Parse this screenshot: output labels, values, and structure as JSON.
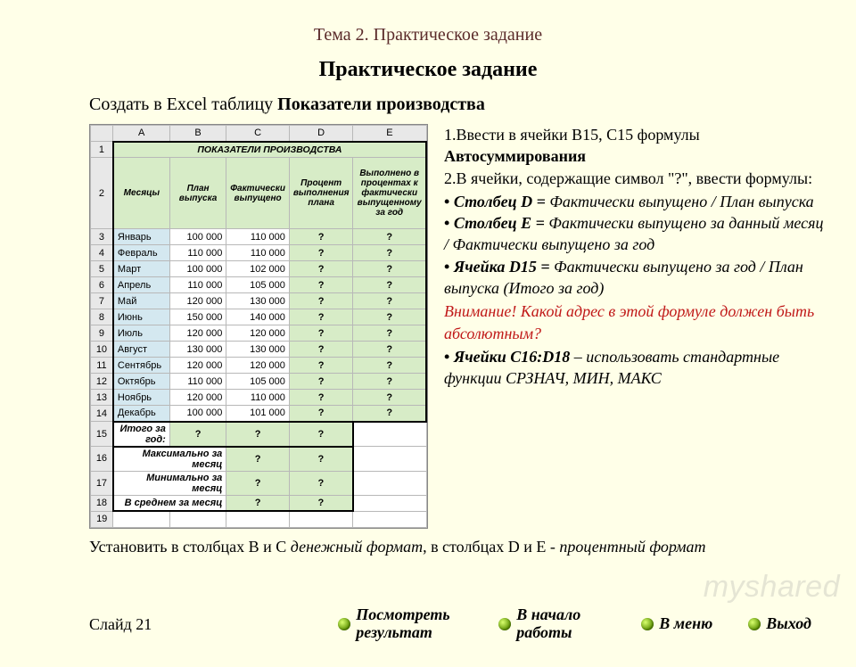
{
  "topic": "Тема 2. Практическое задание",
  "title": "Практическое задание",
  "subtitle_plain": "Создать в Excel таблицу  ",
  "subtitle_bold": "Показатели производства",
  "sheet": {
    "col_letters": [
      "A",
      "B",
      "C",
      "D",
      "E"
    ],
    "header_title": "ПОКАЗАТЕЛИ ПРОИЗВОДСТВА",
    "headers": [
      "Месяцы",
      "План выпуска",
      "Фактически выпущено",
      "Процент выполнения плана",
      "Выполнено в процентах к фактически выпущенному за год"
    ],
    "rows": [
      {
        "n": 3,
        "m": "Январь",
        "p": "100 000",
        "f": "110 000"
      },
      {
        "n": 4,
        "m": "Февраль",
        "p": "110 000",
        "f": "110 000"
      },
      {
        "n": 5,
        "m": "Март",
        "p": "100 000",
        "f": "102 000"
      },
      {
        "n": 6,
        "m": "Апрель",
        "p": "110 000",
        "f": "105 000"
      },
      {
        "n": 7,
        "m": "Май",
        "p": "120 000",
        "f": "130 000"
      },
      {
        "n": 8,
        "m": "Июнь",
        "p": "150 000",
        "f": "140 000"
      },
      {
        "n": 9,
        "m": "Июль",
        "p": "120 000",
        "f": "120 000"
      },
      {
        "n": 10,
        "m": "Август",
        "p": "130 000",
        "f": "130 000"
      },
      {
        "n": 11,
        "m": "Сентябрь",
        "p": "120 000",
        "f": "120 000"
      },
      {
        "n": 12,
        "m": "Октябрь",
        "p": "110 000",
        "f": "105 000"
      },
      {
        "n": 13,
        "m": "Ноябрь",
        "p": "120 000",
        "f": "110 000"
      },
      {
        "n": 14,
        "m": "Декабрь",
        "p": "100 000",
        "f": "101 000"
      }
    ],
    "total_label": "Итого за год:",
    "max_label": "Максимально за месяц",
    "min_label": "Минимально за месяц",
    "avg_label": "В среднем за месяц",
    "q": "?",
    "row_total": 15,
    "row_max": 16,
    "row_min": 17,
    "row_avg": 18,
    "row_blank": 19
  },
  "instr": {
    "l1a": "1.Ввести в ячейки В15, С15 формулы ",
    "l1b": "Автосуммирования",
    "l2": "2.В ячейки, содержащие  символ \"?\",  ввести формулы:",
    "liD_b": "Столбец D = ",
    "liD_i": " Фактически выпущено / План выпуска",
    "liE_b": "Столбец Е =",
    "liE_i": " Фактически выпущено за данный месяц / Фактически выпущено за год",
    "liD15_b": "Ячейка D15 =",
    "liD15_i": " Фактически выпущено за год / План выпуска (Итого за год)",
    "warn": "Внимание! Какой адрес в этой формуле должен быть абсолютным?",
    "liC16_b": "Ячейки С16:D18",
    "liC16_i": " – использовать стандартные функции СРЗНАЧ, МИН, МАКС"
  },
  "note_a": "Установить в столбцах В и С ",
  "note_b": "денежный формат",
  "note_c": ", в столбцах D и  E - ",
  "note_d": "процентный формат",
  "nav": {
    "slide": "Слайд 21",
    "result": "Посмотреть результат",
    "begin": "В начало работы",
    "menu": "В меню",
    "exit": "Выход"
  },
  "watermark": "myshared"
}
